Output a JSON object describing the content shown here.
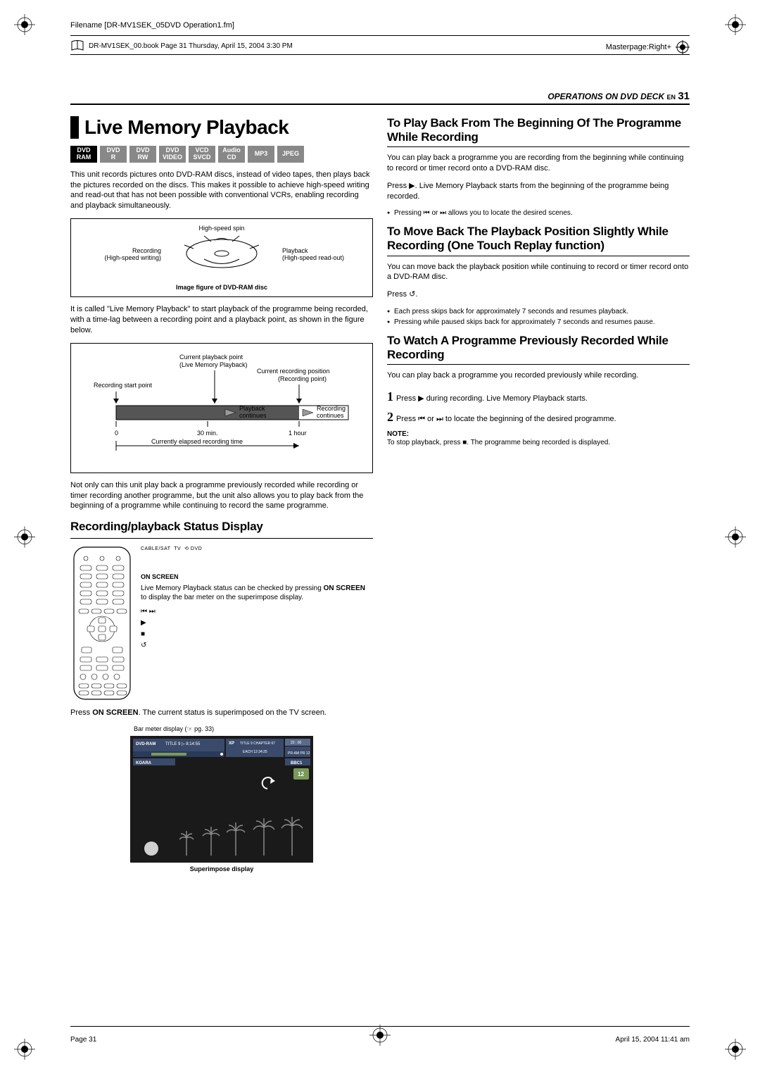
{
  "header": {
    "filename_line": "Filename [DR-MV1SEK_05DVD Operation1.fm]",
    "book_line": "DR-MV1SEK_00.book  Page 31  Thursday, April 15, 2004  3:30 PM",
    "masterpage": "Masterpage:Right+",
    "deck_header": "OPERATIONS ON DVD DECK",
    "en_label": "EN",
    "page_num": "31"
  },
  "left": {
    "title": "Live Memory Playback",
    "badges": [
      {
        "l1": "DVD",
        "l2": "RAM",
        "gray": false
      },
      {
        "l1": "DVD",
        "l2": "R",
        "gray": true
      },
      {
        "l1": "DVD",
        "l2": "RW",
        "gray": true
      },
      {
        "l1": "DVD",
        "l2": "VIDEO",
        "gray": true
      },
      {
        "l1": "VCD",
        "l2": "SVCD",
        "gray": true
      },
      {
        "l1": "Audio",
        "l2": "CD",
        "gray": true
      },
      {
        "l1": "MP3",
        "l2": "",
        "gray": true
      },
      {
        "l1": "JPEG",
        "l2": "",
        "gray": true
      }
    ],
    "para1": "This unit records pictures onto DVD-RAM discs, instead of video tapes, then plays back the pictures recorded on the discs. This makes it possible to achieve high-speed writing and read-out that has not been possible with conventional VCRs, enabling recording and playback simultaneously.",
    "disc_diagram": {
      "top_label": "High-speed spin",
      "left_label1": "Recording",
      "left_label2": "(High-speed writing)",
      "right_label1": "Playback",
      "right_label2": "(High-speed read-out)",
      "caption": "Image figure of DVD-RAM disc"
    },
    "para2": "It is called \"Live Memory Playback\" to start playback of the programme being recorded, with a time-lag between a recording point and a playback point, as shown in the figure below.",
    "timeline": {
      "label_playback_point": "Current playback point",
      "label_playback_point2": "(Live Memory Playback)",
      "label_rec_pos": "Current recording position",
      "label_rec_pos2": "(Recording point)",
      "label_start": "Recording start point",
      "label_pb_cont": "Playback",
      "label_pb_cont2": "continues",
      "label_rec_cont": "Recording",
      "label_rec_cont2": "continues",
      "t0": "0",
      "t30": "30 min.",
      "t60": "1 hour",
      "elapsed": "Currently elapsed recording time"
    },
    "para3": "Not only can this unit play back a programme previously recorded while recording or timer recording another programme, but the unit also allows you to play back from the beginning of a programme while continuing to record the same programme.",
    "status_heading": "Recording/playback Status Display",
    "remote": {
      "on_screen_label": "ON SCREEN",
      "on_screen_text1": "Live Memory Playback status can be checked by pressing ",
      "on_screen_bold": "ON SCREEN",
      "on_screen_text2": " to display the bar meter on the superimpose display."
    },
    "press_line1": "Press ",
    "press_bold": "ON SCREEN",
    "press_line2": ". The current status is superimposed on the TV screen.",
    "bar_meter_label": "Bar meter display (☞ pg. 33)",
    "superimpose_caption": "Superimpose display",
    "tv": {
      "dvd_ram": "DVD-RAM",
      "title": "TITLE 9",
      "play_time": "8:14:55",
      "xp": "XP",
      "title2": "TITLE 9",
      "chapter": "CHAPTER 67",
      "each": "EACH",
      "time2": "12:34:25",
      "clock": "22 : 00",
      "pr": "PR 12",
      "koara": "KOARA",
      "bbc": "BBC1",
      "ch": "12"
    }
  },
  "right": {
    "h1": "To Play Back From The Beginning Of The Programme While Recording",
    "p1": "You can play back a programme you are recording from the beginning while continuing to record or timer record onto a DVD-RAM disc.",
    "p1b": "Press ▶. Live Memory Playback starts from the beginning of the programme being recorded.",
    "b1": "Pressing ⏮ or ⏭ allows you to locate the desired scenes.",
    "h2": "To Move Back The Playback Position Slightly While Recording (One Touch Replay function)",
    "p2": "You can move back the playback position while continuing to record or timer record onto a DVD-RAM disc.",
    "p2b": "Press ↺.",
    "b2a": "Each press skips back for approximately 7 seconds and resumes playback.",
    "b2b": "Pressing while paused skips back for approximately 7 seconds and resumes pause.",
    "h3": "To Watch A Programme Previously Recorded While Recording",
    "p3": "You can play back a programme you recorded previously while recording.",
    "s1": "Press ▶ during recording. Live Memory Playback starts.",
    "s2": "Press ⏮ or ⏭ to locate the beginning of the desired programme.",
    "note_label": "NOTE:",
    "note_text": "To stop playback, press ■. The programme being recorded is displayed."
  },
  "footer": {
    "left": "Page 31",
    "right": "April 15, 2004 11:41 am"
  },
  "colors": {
    "black": "#000000",
    "white": "#ffffff",
    "gray_badge": "#888888",
    "dark_bar": "#555555",
    "tv_bg": "#1a1a1a",
    "tv_header": "#3a4a6a",
    "tv_green": "#7a9a5a"
  }
}
